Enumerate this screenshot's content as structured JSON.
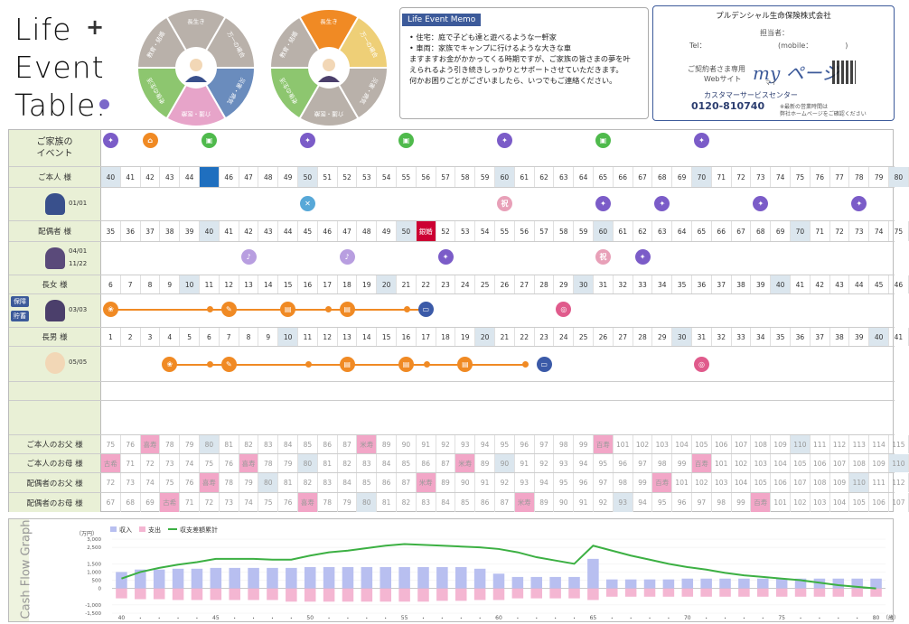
{
  "header": {
    "logo_line1": "Life",
    "logo_line2": "Event",
    "logo_line3": "Table",
    "logo_plus": "+",
    "logo_period": "."
  },
  "wheel": {
    "segments": [
      "長生き",
      "万一の場合",
      "災害・病気",
      "介護・医療",
      "老後の生活",
      "教育・結婚"
    ],
    "segment_labels_wheel1": [
      "長生き",
      "万一の場合",
      "災害・病気",
      "介護・医療",
      "老後の生活",
      "教育・結婚"
    ],
    "colors_wheel1": [
      "#b9b1aa",
      "#b9b1aa",
      "#6a8cbd",
      "#e7a4c9",
      "#8dc66f",
      "#b9b1aa"
    ],
    "colors_wheel2": [
      "#f08a24",
      "#eecf77",
      "#b9b1aa",
      "#b9b1aa",
      "#8dc66f",
      "#b9b1aa"
    ]
  },
  "memo": {
    "title": "Life Event Memo",
    "lines": [
      "• 住宅：庭で子ども達と遊べるような一軒家",
      "• 車両：家族でキャンプに行けるような大きな車",
      "ますますお金がかかってくる時期ですが、ご家族の皆さまの夢を叶",
      "えられるよう引き続きしっかりとサポートさせていただきます。",
      "何かお困りごとがございましたら、いつでもご連絡ください。"
    ]
  },
  "company": {
    "name": "プルデンシャル生命保険株式会社",
    "tantou": "担当者：",
    "tel": "Tel：",
    "mobile": "(mobile：　　　　　)",
    "web_label_1": "ご契約者さま専用",
    "web_label_2": "Webサイト",
    "my_page": "my ページ",
    "my_page_ruby": "マイ",
    "center_label": "カスタマーサービスセンター",
    "center_tel": "0120-810740",
    "center_note_1": "※最新の営業時間は",
    "center_note_2": "弊社ホームページをご確認ください"
  },
  "rows": {
    "family_event_label": "ご家族の\nイベント",
    "honnin_label": "ご本人 様",
    "honnin_bday": "01/01",
    "haiguu_label": "配偶者 様",
    "haiguu_bday1": "04/01",
    "haiguu_bday2": "11/22",
    "chojo_label": "長女 様",
    "chojo_bday": "03/03",
    "chojo_tag1": "保障",
    "chojo_tag2": "貯蓄",
    "chonan_label": "長男 様",
    "chonan_bday": "05/05",
    "father_self_label": "ご本人のお父 様",
    "mother_self_label": "ご本人のお母 様",
    "father_sp_label": "配偶者のお父 様",
    "mother_sp_label": "配偶者のお母 様"
  },
  "ages": {
    "honnin": [
      40,
      41,
      42,
      43,
      44,
      "",
      46,
      47,
      48,
      49,
      50,
      51,
      52,
      53,
      54,
      55,
      56,
      57,
      58,
      59,
      60,
      61,
      62,
      63,
      64,
      65,
      66,
      67,
      68,
      69,
      70,
      71,
      72,
      73,
      74,
      75,
      76,
      77,
      78,
      79,
      80
    ],
    "haiguu": [
      35,
      36,
      37,
      38,
      39,
      40,
      41,
      42,
      43,
      44,
      45,
      46,
      47,
      48,
      49,
      50,
      "銀婚",
      52,
      53,
      54,
      55,
      56,
      57,
      58,
      59,
      60,
      61,
      62,
      63,
      64,
      65,
      66,
      67,
      68,
      69,
      70,
      71,
      72,
      73,
      74,
      75
    ],
    "chojo": [
      6,
      7,
      8,
      9,
      10,
      11,
      12,
      13,
      14,
      15,
      16,
      17,
      18,
      19,
      20,
      21,
      22,
      23,
      24,
      25,
      26,
      27,
      28,
      29,
      30,
      31,
      32,
      33,
      34,
      35,
      36,
      37,
      38,
      39,
      40,
      41,
      42,
      43,
      44,
      45,
      46
    ],
    "chonan": [
      1,
      2,
      3,
      4,
      5,
      6,
      7,
      8,
      9,
      10,
      11,
      12,
      13,
      14,
      15,
      16,
      17,
      18,
      19,
      20,
      21,
      22,
      23,
      24,
      25,
      26,
      27,
      28,
      29,
      30,
      31,
      32,
      33,
      34,
      35,
      36,
      37,
      38,
      39,
      40,
      41
    ],
    "father_self": [
      75,
      76,
      "喜寿",
      78,
      79,
      80,
      81,
      82,
      83,
      84,
      85,
      86,
      87,
      "米寿",
      89,
      90,
      91,
      92,
      93,
      94,
      95,
      96,
      97,
      98,
      99,
      "百寿",
      101,
      102,
      103,
      104,
      105,
      106,
      107,
      108,
      109,
      110,
      111,
      112,
      113,
      114,
      115
    ],
    "mother_self": [
      "古希",
      71,
      72,
      73,
      74,
      75,
      76,
      "喜寿",
      78,
      79,
      80,
      81,
      82,
      83,
      84,
      85,
      86,
      87,
      "米寿",
      89,
      90,
      91,
      92,
      93,
      94,
      95,
      96,
      97,
      98,
      99,
      "百寿",
      101,
      102,
      103,
      104,
      105,
      106,
      107,
      108,
      109,
      110
    ],
    "father_sp": [
      72,
      73,
      74,
      75,
      76,
      "喜寿",
      78,
      79,
      80,
      81,
      82,
      83,
      84,
      85,
      86,
      87,
      "米寿",
      89,
      90,
      91,
      92,
      93,
      94,
      95,
      96,
      97,
      98,
      99,
      "百寿",
      101,
      102,
      103,
      104,
      105,
      106,
      107,
      108,
      109,
      110,
      111,
      112
    ],
    "mother_sp": [
      67,
      68,
      69,
      "古希",
      71,
      72,
      73,
      74,
      75,
      76,
      "喜寿",
      78,
      79,
      80,
      81,
      82,
      83,
      84,
      85,
      86,
      87,
      "米寿",
      89,
      90,
      91,
      92,
      93,
      94,
      95,
      96,
      97,
      98,
      99,
      "百寿",
      101,
      102,
      103,
      104,
      105,
      106,
      107
    ]
  },
  "chart_data": {
    "type": "bar",
    "title": "Cash Flow Graph",
    "unit": "（万円）",
    "legend": [
      "収入",
      "支出",
      "収支差額累計"
    ],
    "colors": {
      "income": "#b8bff0",
      "expense": "#f4b6d2",
      "cumulative": "#3cb043"
    },
    "y_ticks": [
      "3,000",
      "2,500",
      "1,500",
      "1,000",
      "500",
      "0",
      "-1,000",
      "-1,500"
    ],
    "x_ticks": [
      "40",
      "45",
      "50",
      "55",
      "60",
      "65",
      "70",
      "75",
      "80"
    ],
    "x_suffix": "（歳）",
    "x": [
      40,
      41,
      42,
      43,
      44,
      45,
      46,
      47,
      48,
      49,
      50,
      51,
      52,
      53,
      54,
      55,
      56,
      57,
      58,
      59,
      60,
      61,
      62,
      63,
      64,
      65,
      66,
      67,
      68,
      69,
      70,
      71,
      72,
      73,
      74,
      75,
      76,
      77,
      78,
      79,
      80
    ],
    "income": [
      1000,
      1150,
      1150,
      1200,
      1200,
      1250,
      1250,
      1250,
      1250,
      1250,
      1300,
      1300,
      1300,
      1300,
      1300,
      1300,
      1300,
      1300,
      1300,
      1200,
      900,
      700,
      700,
      700,
      700,
      1800,
      550,
      550,
      550,
      550,
      600,
      600,
      600,
      600,
      600,
      600,
      600,
      600,
      600,
      600,
      600
    ],
    "expense": [
      -600,
      -650,
      -650,
      -700,
      -700,
      -700,
      -700,
      -700,
      -700,
      -800,
      -800,
      -800,
      -800,
      -800,
      -800,
      -800,
      -800,
      -750,
      -750,
      -700,
      -700,
      -600,
      -600,
      -600,
      -600,
      -700,
      -500,
      -500,
      -500,
      -500,
      -500,
      -500,
      -500,
      -500,
      -500,
      -500,
      -500,
      -500,
      -500,
      -500,
      -500
    ],
    "cumulative": [
      600,
      1000,
      1250,
      1450,
      1600,
      1800,
      1800,
      1800,
      1750,
      1750,
      2000,
      2200,
      2300,
      2450,
      2600,
      2700,
      2650,
      2600,
      2550,
      2500,
      2400,
      2200,
      1900,
      1700,
      1500,
      2600,
      2300,
      2000,
      1750,
      1500,
      1300,
      1150,
      950,
      800,
      700,
      600,
      500,
      350,
      200,
      100,
      0
    ],
    "ylim": [
      -1500,
      3000
    ]
  }
}
